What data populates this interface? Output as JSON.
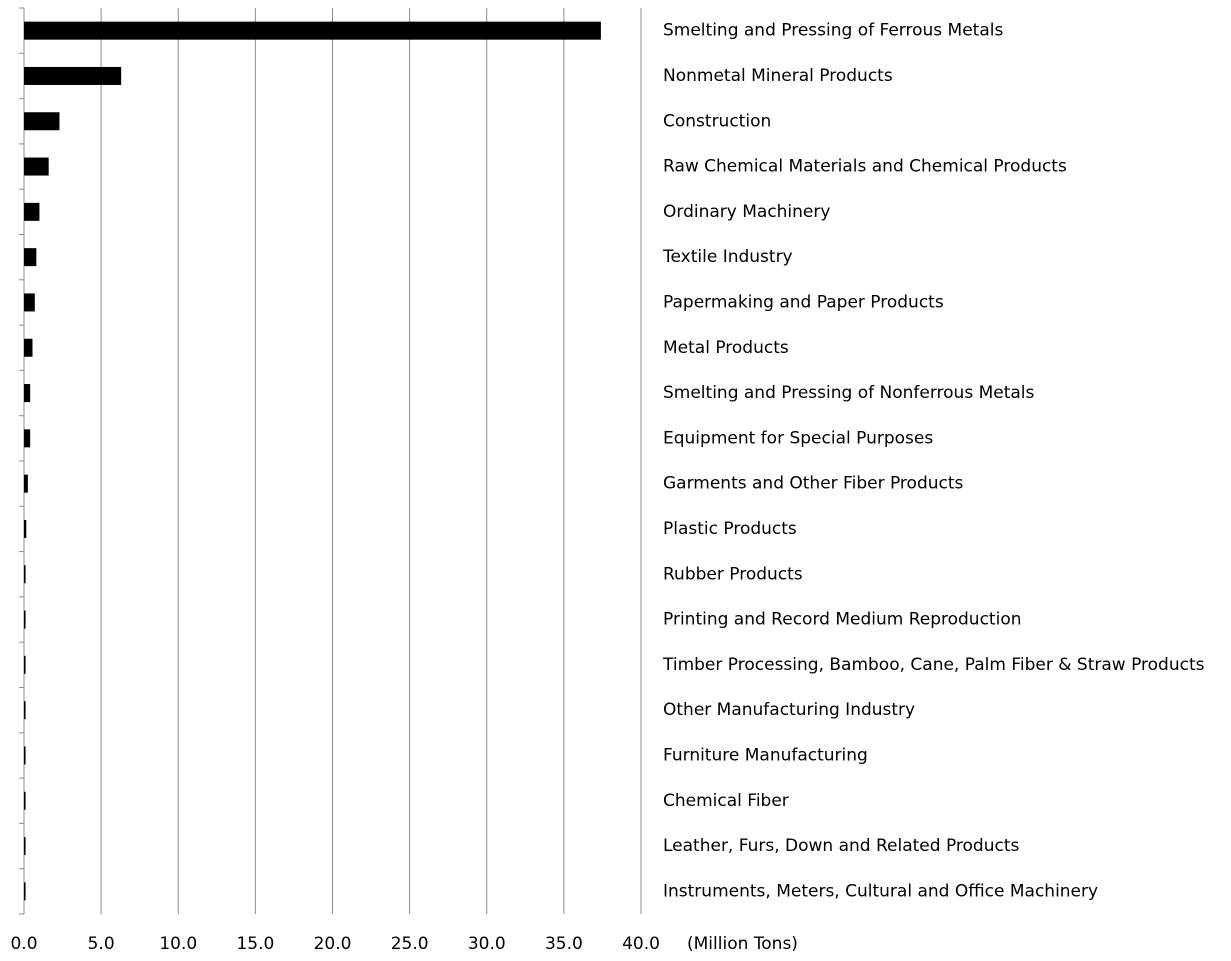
{
  "chart_data": {
    "type": "hbar",
    "categories": [
      "Smelting and Pressing of Ferrous Metals",
      "Nonmetal Mineral Products",
      "Construction",
      "Raw Chemical Materials and Chemical Products",
      "Ordinary Machinery",
      "Textile Industry",
      "Papermaking and Paper Products",
      "Metal Products",
      "Smelting and Pressing of Nonferrous Metals",
      "Equipment for Special Purposes",
      "Garments and Other Fiber Products",
      "Plastic Products",
      "Rubber Products",
      "Printing and Record Medium Reproduction",
      "Timber Processing, Bamboo, Cane, Palm Fiber & Straw Products",
      "Other Manufacturing Industry",
      "Furniture Manufacturing",
      "Chemical Fiber",
      "Leather, Furs, Down and Related Products",
      "Instruments, Meters, Cultural and Office Machinery"
    ],
    "values": [
      37.4,
      6.3,
      2.3,
      1.6,
      1.0,
      0.8,
      0.7,
      0.55,
      0.4,
      0.4,
      0.25,
      0.15,
      0.1,
      0.1,
      0.1,
      0.1,
      0.1,
      0.1,
      0.1,
      0.1
    ],
    "color": "#000000",
    "xlabel": "(Million Tons)",
    "xlim": [
      0,
      40
    ],
    "xticks": [
      {
        "value": 0,
        "label": "0.0"
      },
      {
        "value": 5,
        "label": "5.0"
      },
      {
        "value": 10,
        "label": "10.0"
      },
      {
        "value": 15,
        "label": "15.0"
      },
      {
        "value": 20,
        "label": "20.0"
      },
      {
        "value": 25,
        "label": "25.0"
      },
      {
        "value": 30,
        "label": "30.0"
      },
      {
        "value": 35,
        "label": "35.0"
      },
      {
        "value": 40,
        "label": "40.0"
      }
    ],
    "grid": true
  }
}
